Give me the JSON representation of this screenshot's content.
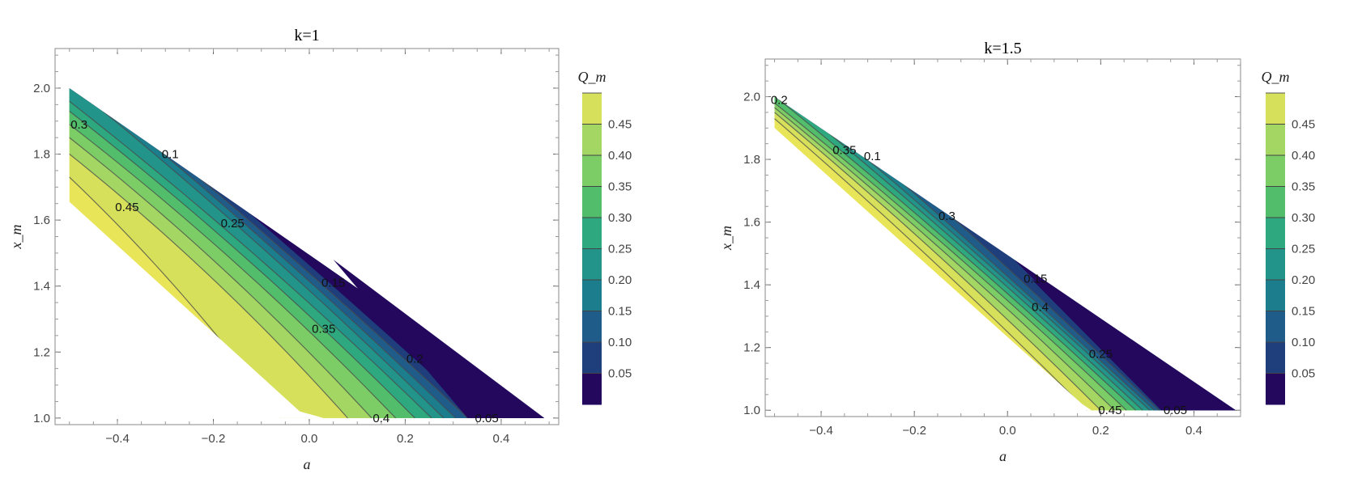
{
  "colors": {
    "dark": "#23085e",
    "band_05_10": "#1f3f7c",
    "band_10_15": "#1f5c8a",
    "band_15_20": "#1c7d8c",
    "band_20_25": "#22948a",
    "band_25_30": "#2ea87f",
    "band_30_35": "#52be6c",
    "band_35_40": "#7ccd65",
    "band_40_45": "#a4d663",
    "band_45_plus": "#d6e05a",
    "yellow": "#e8e559"
  },
  "chart_data": [
    {
      "type": "contour",
      "title": "k=1",
      "xlabel": "a",
      "ylabel": "x_m",
      "xlim": [
        -0.53,
        0.52
      ],
      "ylim": [
        0.98,
        2.12
      ],
      "xticks": [
        "−0.4",
        "−0.2",
        "0.0",
        "0.2",
        "0.4"
      ],
      "xtick_values": [
        -0.4,
        -0.2,
        0.0,
        0.2,
        0.4
      ],
      "yticks": [
        "1.0",
        "1.2",
        "1.4",
        "1.6",
        "1.8",
        "2.0"
      ],
      "ytick_values": [
        1.0,
        1.2,
        1.4,
        1.6,
        1.8,
        2.0
      ],
      "contour_levels": [
        0.05,
        0.1,
        0.15,
        0.2,
        0.25,
        0.3,
        0.35,
        0.4,
        0.45
      ],
      "contour_labels": [
        {
          "text": "0.3",
          "a": -0.48,
          "x": 1.89
        },
        {
          "text": "0.1",
          "a": -0.29,
          "x": 1.8
        },
        {
          "text": "0.45",
          "a": -0.38,
          "x": 1.64
        },
        {
          "text": "0.25",
          "a": -0.16,
          "x": 1.59
        },
        {
          "text": "0.15",
          "a": 0.05,
          "x": 1.41
        },
        {
          "text": "0.35",
          "a": 0.03,
          "x": 1.27
        },
        {
          "text": "0.2",
          "a": 0.22,
          "x": 1.18
        },
        {
          "text": "0.4",
          "a": 0.15,
          "x": 1.0
        },
        {
          "text": "0.05",
          "a": 0.37,
          "x": 1.0
        }
      ],
      "colorbar": {
        "title": "Q_m",
        "tick_labels": [
          "0.05",
          "0.10",
          "0.15",
          "0.20",
          "0.25",
          "0.30",
          "0.35",
          "0.40",
          "0.45"
        ]
      }
    },
    {
      "type": "contour",
      "title": "k=1.5",
      "xlabel": "a",
      "ylabel": "x_m",
      "xlim": [
        -0.52,
        0.5
      ],
      "ylim": [
        0.98,
        2.12
      ],
      "xticks": [
        "−0.4",
        "−0.2",
        "0.0",
        "0.2",
        "0.4"
      ],
      "xtick_values": [
        -0.4,
        -0.2,
        0.0,
        0.2,
        0.4
      ],
      "yticks": [
        "1.0",
        "1.2",
        "1.4",
        "1.6",
        "1.8",
        "2.0"
      ],
      "ytick_values": [
        1.0,
        1.2,
        1.4,
        1.6,
        1.8,
        2.0
      ],
      "contour_levels": [
        0.05,
        0.1,
        0.15,
        0.2,
        0.25,
        0.3,
        0.35,
        0.4,
        0.45
      ],
      "contour_labels": [
        {
          "text": "0.2",
          "a": -0.49,
          "x": 1.99
        },
        {
          "text": "0.35",
          "a": -0.35,
          "x": 1.83
        },
        {
          "text": "0.1",
          "a": -0.29,
          "x": 1.81
        },
        {
          "text": "0.3",
          "a": -0.13,
          "x": 1.62
        },
        {
          "text": "0.15",
          "a": 0.06,
          "x": 1.42
        },
        {
          "text": "0.4",
          "a": 0.07,
          "x": 1.33
        },
        {
          "text": "0.25",
          "a": 0.2,
          "x": 1.18
        },
        {
          "text": "0.45",
          "a": 0.22,
          "x": 1.0
        },
        {
          "text": "0.05",
          "a": 0.36,
          "x": 1.0
        }
      ],
      "colorbar": {
        "title": "Q_m",
        "tick_labels": [
          "0.05",
          "0.10",
          "0.15",
          "0.20",
          "0.25",
          "0.30",
          "0.35",
          "0.40",
          "0.45"
        ]
      }
    }
  ]
}
